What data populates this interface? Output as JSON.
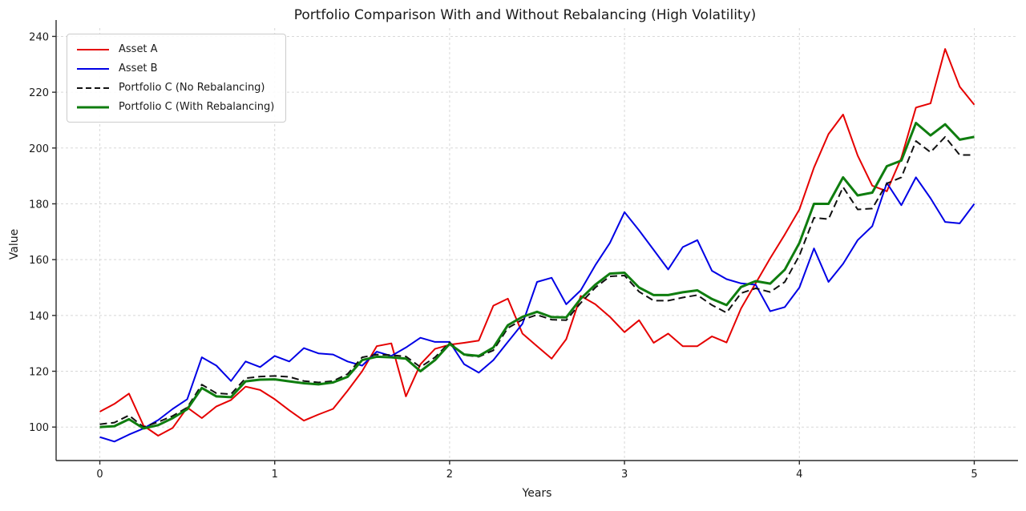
{
  "chart_data": {
    "type": "line",
    "title": "Portfolio Comparison With and Without Rebalancing (High Volatility)",
    "xlabel": "Years",
    "ylabel": "Value",
    "xlim": [
      -0.25,
      5.25
    ],
    "ylim": [
      88,
      243
    ],
    "xticks": [
      0,
      1,
      2,
      3,
      4,
      5
    ],
    "yticks": [
      100,
      120,
      140,
      160,
      180,
      200,
      220,
      240
    ],
    "grid": true,
    "grid_style": "dashed-light-gray",
    "legend_position": "upper left",
    "x_unit": "years",
    "points_per_year": 12,
    "x_range_data": [
      0,
      5
    ],
    "series": [
      {
        "name": "Asset A",
        "color": "#e50000",
        "width": 2,
        "dash": null,
        "values": [
          105.5,
          108.3,
          112,
          100.5,
          96.9,
          99.7,
          107,
          103.2,
          107.4,
          109.7,
          114.5,
          113.3,
          110,
          106,
          102.3,
          104.5,
          106.5,
          113,
          120,
          129,
          130,
          111,
          122.5,
          128,
          129.5,
          130.2,
          131,
          143.5,
          146,
          133.5,
          129,
          124.5,
          131.5,
          147,
          144,
          139.5,
          134,
          138.3,
          130.2,
          133.5,
          129,
          129,
          132.5,
          130.3,
          142.5,
          151.5,
          160.5,
          169,
          178,
          193,
          205,
          212,
          197.3,
          186.5,
          184.5,
          196.5,
          214.5,
          216,
          235.5,
          222,
          215.5
        ]
      },
      {
        "name": "Asset B",
        "color": "#0000e5",
        "width": 2,
        "dash": null,
        "values": [
          96.4,
          94.8,
          97.3,
          99.5,
          102.5,
          106.5,
          110,
          125,
          122,
          116.5,
          123.5,
          121.5,
          125.5,
          123.5,
          128.3,
          126.4,
          126,
          123.5,
          122,
          127,
          125.5,
          128.5,
          132,
          130.5,
          130.5,
          122.5,
          119.5,
          124,
          130.5,
          137,
          152,
          153.5,
          144,
          149,
          158,
          166,
          177,
          170.5,
          163.5,
          156.5,
          164.5,
          167,
          156,
          153,
          151.5,
          151,
          141.5,
          143,
          150,
          164,
          152,
          158.5,
          167,
          172,
          187.5,
          179.5,
          189.5,
          182,
          173.5,
          173,
          180
        ]
      },
      {
        "name": "Portfolio C (No Rebalancing)",
        "color": "#111111",
        "width": 2,
        "dash": "9 5",
        "values": [
          101,
          101.6,
          104.2,
          100,
          101.8,
          104,
          107,
          115.2,
          112.1,
          111.8,
          117.5,
          118.1,
          118.3,
          118,
          116.5,
          116,
          116.5,
          119,
          125,
          126,
          125.8,
          125.3,
          121.5,
          125,
          130.3,
          125.8,
          125.2,
          127.5,
          135.5,
          138.5,
          140.2,
          138.5,
          138.3,
          144.5,
          150,
          154,
          154.3,
          148.5,
          145.3,
          145.3,
          146.4,
          147.3,
          143.7,
          141,
          148,
          149.7,
          148.4,
          152,
          161.5,
          175,
          174.5,
          186,
          178,
          178.3,
          187.3,
          189.5,
          202.5,
          198.5,
          204,
          197.5,
          197.5
        ]
      },
      {
        "name": "Portfolio C (With Rebalancing)",
        "color": "#0f7d0f",
        "width": 3,
        "dash": null,
        "values": [
          100,
          100.3,
          102.8,
          99.5,
          100.7,
          103.2,
          106.4,
          114,
          111,
          110.7,
          116.4,
          117,
          117.1,
          116.4,
          115.7,
          115.3,
          116,
          118,
          124,
          125.2,
          125,
          124.5,
          120,
          124,
          129.8,
          126,
          125.5,
          128.5,
          136.5,
          139.5,
          141.3,
          139.4,
          139.3,
          146,
          151,
          155,
          155.3,
          150,
          147.3,
          147.3,
          148.3,
          149,
          145.9,
          143.7,
          150.2,
          152.3,
          151.4,
          156.4,
          166,
          180,
          180,
          189.5,
          183,
          184,
          193.5,
          195.5,
          209,
          204.5,
          208.5,
          203,
          204
        ]
      }
    ],
    "colors": {
      "background": "#ffffff",
      "gridline": "#d8d8d8",
      "spine": "#2b2b2b",
      "text": "#1a1a1a",
      "legend_border": "#cccccc"
    }
  }
}
